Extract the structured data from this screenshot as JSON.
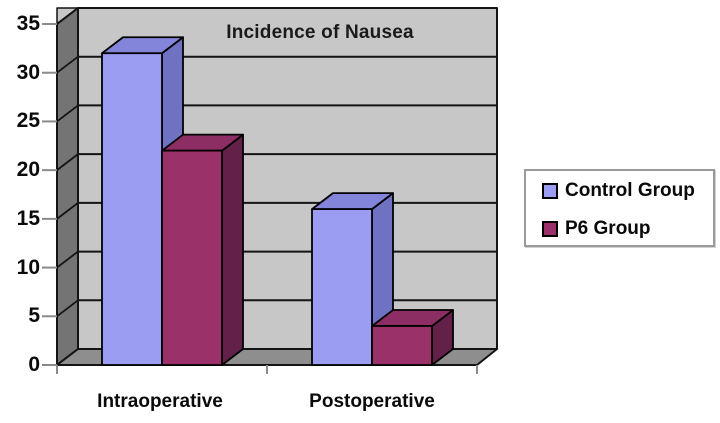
{
  "chart_data": {
    "type": "bar",
    "variant": "3d-clustered-column",
    "title": "Incidence of Nausea",
    "categories": [
      "Intraoperative",
      "Postoperative"
    ],
    "series": [
      {
        "name": "Control Group",
        "values": [
          32,
          16
        ],
        "color_front": "#9B9DF2",
        "color_side": "#6F71C2",
        "color_top": "#8385DB"
      },
      {
        "name": "P6 Group",
        "values": [
          22,
          4
        ],
        "color_front": "#9B3169",
        "color_side": "#63214A",
        "color_top": "#8C2E63"
      }
    ],
    "ylim": [
      0,
      35
    ],
    "yticks": [
      0,
      5,
      10,
      15,
      20,
      25,
      30,
      35
    ],
    "grid": true,
    "legend_position": "right",
    "colors": {
      "background": "#FFFFFF",
      "back_wall": "#C7C7C7",
      "side_wall": "#747474",
      "floor": "#8E8E8E",
      "gridline": "#141414",
      "bar_outline": "#000000",
      "tick": "#8A8A8A",
      "text": "#0A0A0A",
      "legend_border": "#9A9A9A"
    }
  }
}
